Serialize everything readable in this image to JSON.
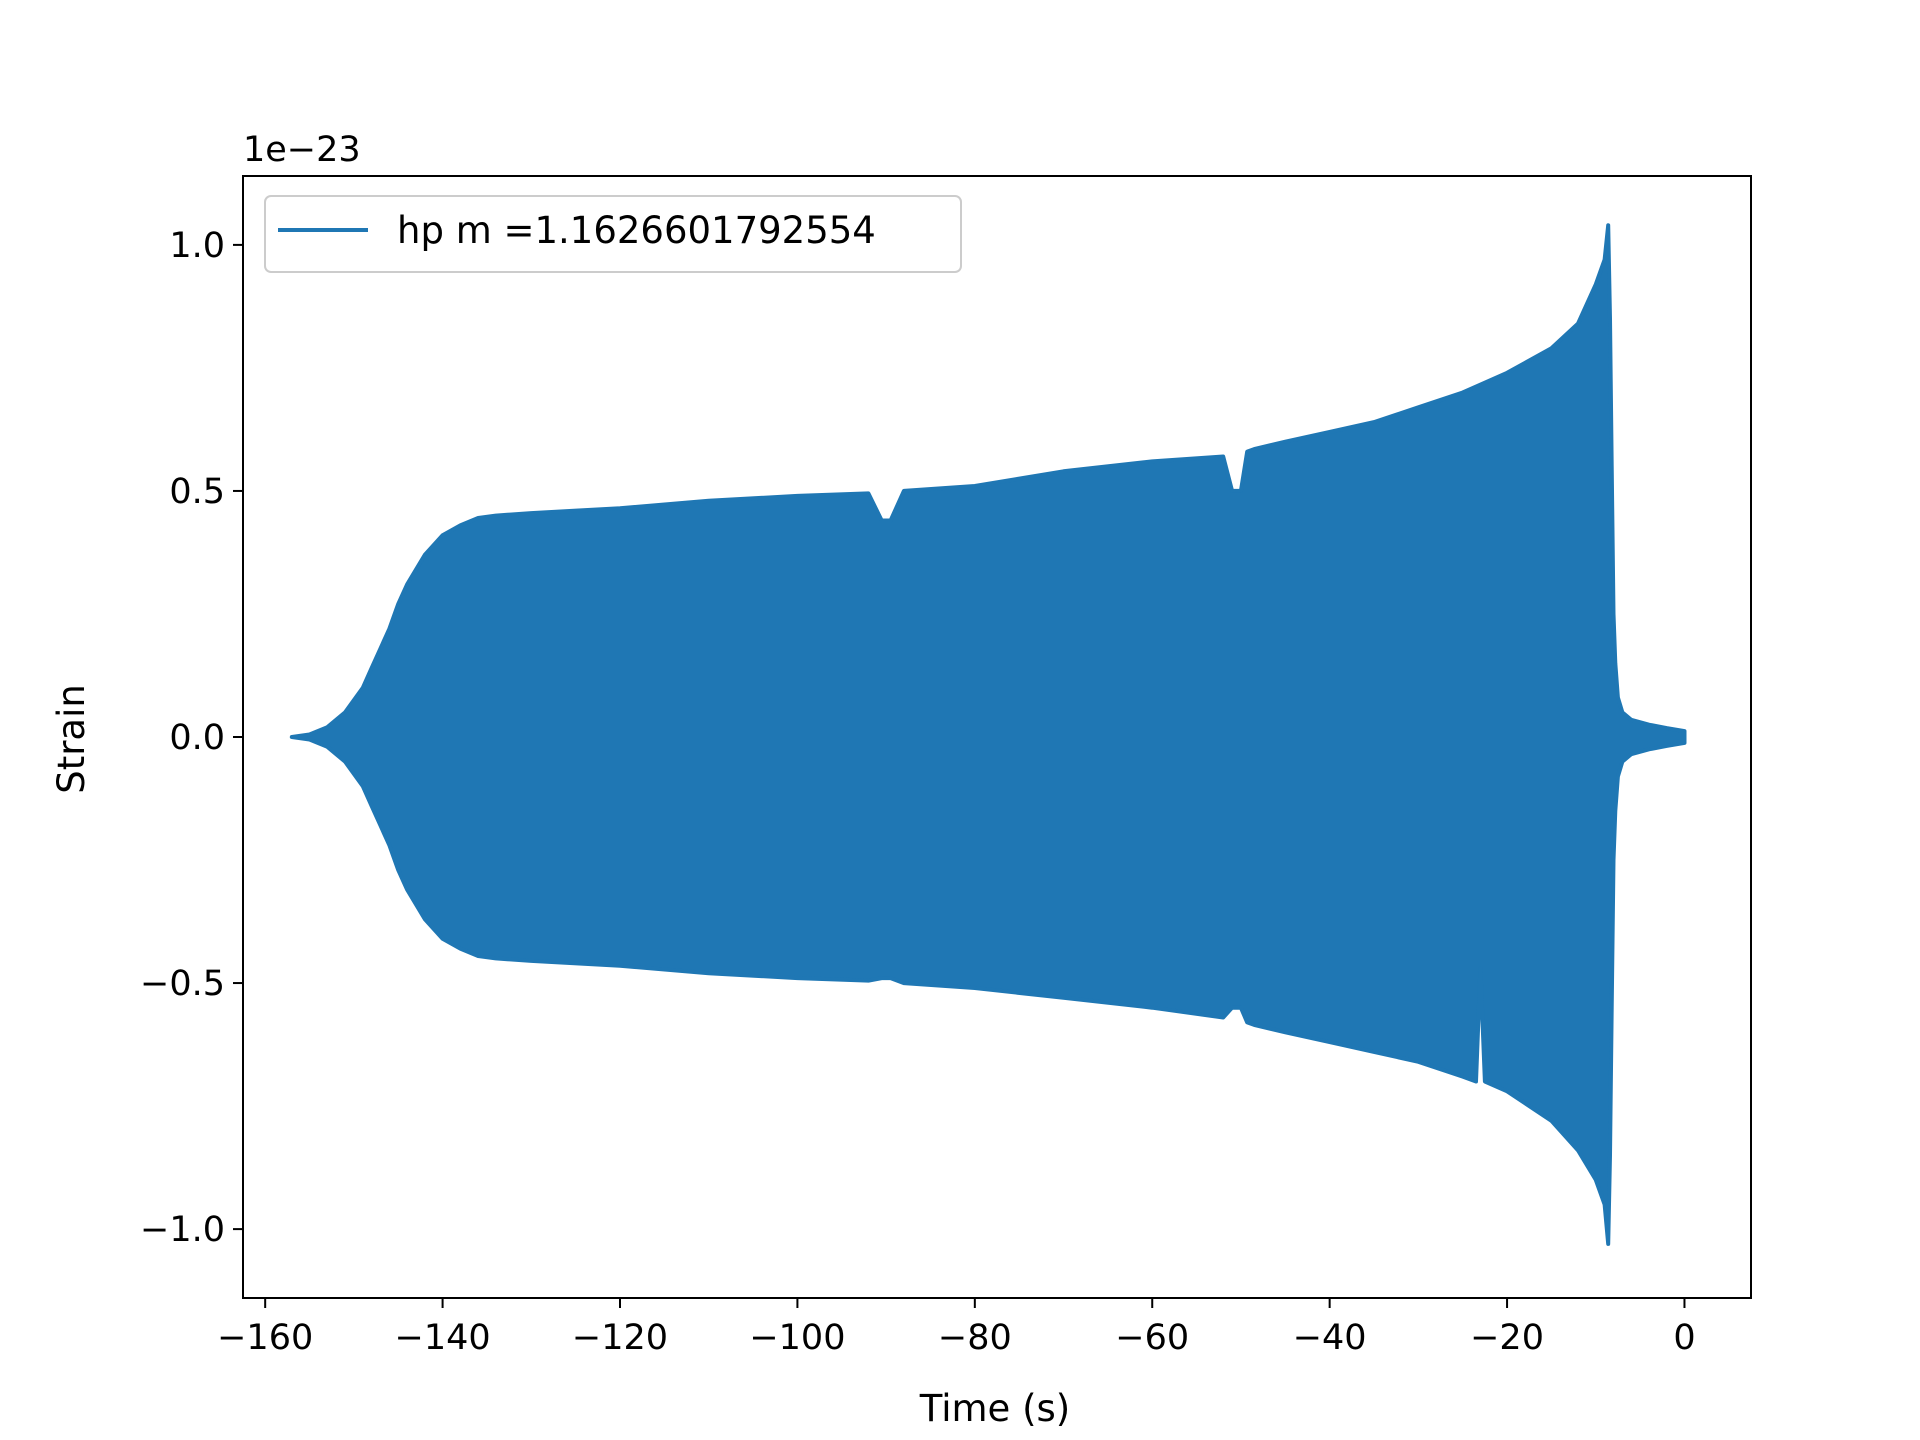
{
  "chart_data": {
    "type": "area",
    "title": "",
    "xlabel": "Time (s)",
    "ylabel": "Strain",
    "y_offset_label": "1e−23",
    "xlim": [
      -162.5,
      7.5
    ],
    "ylim": [
      -1.14,
      1.14
    ],
    "x_ticks": [
      -160,
      -140,
      -120,
      -100,
      -80,
      -60,
      -40,
      -20,
      0
    ],
    "x_tick_labels": [
      "−160",
      "−140",
      "−120",
      "−100",
      "−80",
      "−60",
      "−40",
      "−20",
      "0"
    ],
    "y_ticks": [
      1.0,
      0.5,
      0.0,
      -0.5,
      -1.0
    ],
    "y_tick_labels": [
      "1.0",
      "0.5",
      "0.0",
      "−0.5",
      "−1.0"
    ],
    "grid": false,
    "legend_position": "top-left",
    "series": [
      {
        "name": "hp m =1.1626601792554",
        "color": "#1f77b4",
        "envelope_upper": {
          "x": [
            -157,
            -155,
            -153,
            -151,
            -149,
            -148,
            -147,
            -146,
            -145,
            -144,
            -142,
            -140,
            -138,
            -136,
            -134,
            -130,
            -120,
            -110,
            -100,
            -92,
            -90.5,
            -89.5,
            -88,
            -80,
            -70,
            -60,
            -52,
            -51,
            -50,
            -49.3,
            -48.5,
            -45,
            -40,
            -35,
            -30,
            -25,
            -20,
            -15,
            -12,
            -10,
            -9,
            -8.6,
            -8.4,
            -8.2,
            -8,
            -7.8,
            -7.5,
            -7,
            -6,
            -4,
            -2,
            0
          ],
          "y": [
            0.0,
            0.005,
            0.02,
            0.05,
            0.1,
            0.14,
            0.18,
            0.22,
            0.27,
            0.31,
            0.37,
            0.41,
            0.43,
            0.445,
            0.45,
            0.455,
            0.465,
            0.48,
            0.49,
            0.495,
            0.44,
            0.44,
            0.5,
            0.51,
            0.54,
            0.56,
            0.57,
            0.5,
            0.5,
            0.58,
            0.585,
            0.6,
            0.62,
            0.64,
            0.67,
            0.7,
            0.74,
            0.79,
            0.84,
            0.92,
            0.97,
            1.04,
            0.85,
            0.55,
            0.25,
            0.15,
            0.08,
            0.05,
            0.035,
            0.025,
            0.018,
            0.012
          ]
        },
        "envelope_lower": {
          "x": [
            -157,
            -155,
            -153,
            -151,
            -149,
            -148,
            -147,
            -146,
            -145,
            -144,
            -142,
            -140,
            -138,
            -136,
            -134,
            -130,
            -120,
            -110,
            -100,
            -92,
            -90.5,
            -89.5,
            -88,
            -80,
            -70,
            -60,
            -52,
            -51,
            -50,
            -49.3,
            -48.5,
            -45,
            -40,
            -35,
            -30,
            -25,
            -23.5,
            -23,
            -22.5,
            -20,
            -15,
            -12,
            -10,
            -9,
            -8.6,
            -8.4,
            -8.2,
            -8,
            -7.8,
            -7.5,
            -7,
            -6,
            -4,
            -2,
            0
          ],
          "y": [
            0.0,
            -0.005,
            -0.02,
            -0.05,
            -0.1,
            -0.14,
            -0.18,
            -0.22,
            -0.27,
            -0.31,
            -0.37,
            -0.41,
            -0.43,
            -0.445,
            -0.45,
            -0.455,
            -0.465,
            -0.48,
            -0.49,
            -0.495,
            -0.49,
            -0.49,
            -0.5,
            -0.51,
            -0.53,
            -0.55,
            -0.57,
            -0.55,
            -0.55,
            -0.58,
            -0.585,
            -0.6,
            -0.62,
            -0.64,
            -0.66,
            -0.69,
            -0.7,
            -0.47,
            -0.7,
            -0.72,
            -0.78,
            -0.84,
            -0.9,
            -0.95,
            -1.03,
            -0.85,
            -0.55,
            -0.25,
            -0.15,
            -0.08,
            -0.05,
            -0.035,
            -0.025,
            -0.018,
            -0.012
          ]
        }
      }
    ]
  }
}
